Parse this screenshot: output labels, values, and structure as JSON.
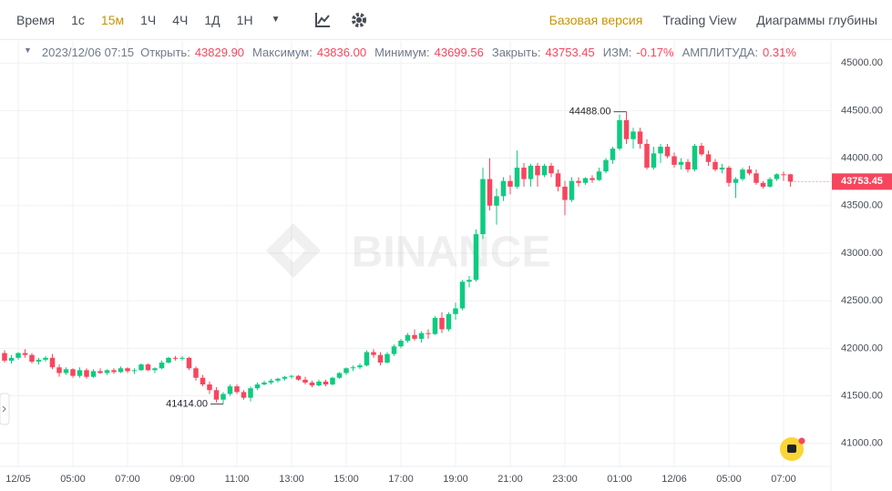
{
  "toolbar": {
    "intervals": [
      "Время",
      "1с",
      "15м",
      "1Ч",
      "4Ч",
      "1Д",
      "1Н"
    ],
    "active_interval": "15м",
    "views": [
      "Базовая версия",
      "Trading View",
      "Диаграммы глубины"
    ],
    "active_view": "Базовая версия"
  },
  "header": {
    "time": "2023/12/06 07:15",
    "fields": [
      {
        "label": "Открыть:",
        "value": "43829.90"
      },
      {
        "label": "Максимум:",
        "value": "43836.00"
      },
      {
        "label": "Минимум:",
        "value": "43699.56"
      },
      {
        "label": "Закрыть:",
        "value": "43753.45"
      },
      {
        "label": "ИЗМ:",
        "value": "-0.17%"
      },
      {
        "label": "АМПЛИТУДА:",
        "value": "0.31%"
      }
    ]
  },
  "chart_data": {
    "type": "candlestick",
    "watermark": "BINANCE",
    "up_color": "#0ecb81",
    "down_color": "#f6465d",
    "ylim": [
      40758,
      45232
    ],
    "yticks": [
      {
        "value": 41000,
        "label": "41000.00"
      },
      {
        "value": 41500,
        "label": "41500.00"
      },
      {
        "value": 42000,
        "label": "42000.00"
      },
      {
        "value": 42500,
        "label": "42500.00"
      },
      {
        "value": 43000,
        "label": "43000.00"
      },
      {
        "value": 43500,
        "label": "43500.00"
      },
      {
        "value": 44000,
        "label": "44000.00"
      },
      {
        "value": 44500,
        "label": "44500.00"
      },
      {
        "value": 45000,
        "label": "45000.00"
      }
    ],
    "xticks": [
      {
        "value": 2,
        "label": "12/05"
      },
      {
        "value": 10,
        "label": "05:00"
      },
      {
        "value": 18,
        "label": "07:00"
      },
      {
        "value": 26,
        "label": "09:00"
      },
      {
        "value": 34,
        "label": "11:00"
      },
      {
        "value": 42,
        "label": "13:00"
      },
      {
        "value": 50,
        "label": "15:00"
      },
      {
        "value": 58,
        "label": "17:00"
      },
      {
        "value": 66,
        "label": "19:00"
      },
      {
        "value": 74,
        "label": "21:00"
      },
      {
        "value": 82,
        "label": "23:00"
      },
      {
        "value": 90,
        "label": "01:00"
      },
      {
        "value": 98,
        "label": "12/06"
      },
      {
        "value": 106,
        "label": "05:00"
      },
      {
        "value": 114,
        "label": "07:00"
      }
    ],
    "annotations": [
      {
        "value": 44488,
        "label": "44488.00"
      },
      {
        "value": 41414,
        "label": "41414.00"
      }
    ],
    "candles": [
      [
        41950,
        41980,
        41850,
        41870
      ],
      [
        41870,
        41930,
        41840,
        41900
      ],
      [
        41900,
        41960,
        41880,
        41950
      ],
      [
        41950,
        41990,
        41900,
        41930
      ],
      [
        41930,
        41950,
        41840,
        41860
      ],
      [
        41860,
        41900,
        41830,
        41880
      ],
      [
        41880,
        41920,
        41860,
        41900
      ],
      [
        41900,
        41940,
        41780,
        41800
      ],
      [
        41800,
        41830,
        41700,
        41740
      ],
      [
        41740,
        41800,
        41720,
        41780
      ],
      [
        41780,
        41790,
        41690,
        41710
      ],
      [
        41710,
        41800,
        41690,
        41770
      ],
      [
        41770,
        41790,
        41680,
        41700
      ],
      [
        41700,
        41780,
        41690,
        41760
      ],
      [
        41760,
        41790,
        41730,
        41740
      ],
      [
        41740,
        41780,
        41720,
        41770
      ],
      [
        41770,
        41790,
        41730,
        41750
      ],
      [
        41750,
        41810,
        41740,
        41790
      ],
      [
        41790,
        41800,
        41740,
        41760
      ],
      [
        41760,
        41790,
        41730,
        41770
      ],
      [
        41770,
        41840,
        41760,
        41830
      ],
      [
        41830,
        41840,
        41760,
        41770
      ],
      [
        41770,
        41800,
        41740,
        41790
      ],
      [
        41790,
        41870,
        41780,
        41850
      ],
      [
        41850,
        41910,
        41840,
        41900
      ],
      [
        41900,
        41920,
        41870,
        41890
      ],
      [
        41890,
        41920,
        41870,
        41900
      ],
      [
        41900,
        41910,
        41770,
        41790
      ],
      [
        41790,
        41810,
        41660,
        41690
      ],
      [
        41690,
        41720,
        41600,
        41620
      ],
      [
        41620,
        41650,
        41520,
        41560
      ],
      [
        41560,
        41590,
        41430,
        41460
      ],
      [
        41460,
        41540,
        41414,
        41520
      ],
      [
        41520,
        41620,
        41500,
        41600
      ],
      [
        41600,
        41620,
        41520,
        41540
      ],
      [
        41540,
        41560,
        41460,
        41480
      ],
      [
        41480,
        41600,
        41440,
        41580
      ],
      [
        41580,
        41640,
        41560,
        41620
      ],
      [
        41620,
        41660,
        41610,
        41640
      ],
      [
        41640,
        41680,
        41620,
        41660
      ],
      [
        41660,
        41690,
        41640,
        41680
      ],
      [
        41680,
        41710,
        41660,
        41700
      ],
      [
        41700,
        41720,
        41680,
        41710
      ],
      [
        41710,
        41720,
        41660,
        41670
      ],
      [
        41670,
        41700,
        41620,
        41640
      ],
      [
        41640,
        41660,
        41590,
        41610
      ],
      [
        41610,
        41670,
        41600,
        41650
      ],
      [
        41650,
        41670,
        41600,
        41620
      ],
      [
        41620,
        41700,
        41610,
        41690
      ],
      [
        41690,
        41750,
        41680,
        41740
      ],
      [
        41740,
        41800,
        41720,
        41790
      ],
      [
        41790,
        41820,
        41760,
        41800
      ],
      [
        41800,
        41840,
        41780,
        41820
      ],
      [
        41820,
        41980,
        41810,
        41960
      ],
      [
        41960,
        41990,
        41900,
        41930
      ],
      [
        41930,
        41960,
        41820,
        41850
      ],
      [
        41850,
        41960,
        41840,
        41940
      ],
      [
        41940,
        42040,
        41920,
        42020
      ],
      [
        42020,
        42100,
        42000,
        42080
      ],
      [
        42080,
        42160,
        42060,
        42140
      ],
      [
        42140,
        42200,
        42080,
        42100
      ],
      [
        42100,
        42180,
        42060,
        42160
      ],
      [
        42160,
        42200,
        42100,
        42150
      ],
      [
        42150,
        42340,
        42140,
        42320
      ],
      [
        42320,
        42380,
        42160,
        42200
      ],
      [
        42200,
        42380,
        42180,
        42360
      ],
      [
        42360,
        42480,
        42300,
        42420
      ],
      [
        42420,
        42720,
        42400,
        42700
      ],
      [
        42700,
        42760,
        42640,
        42720
      ],
      [
        42720,
        43250,
        42700,
        43200
      ],
      [
        43200,
        43900,
        43150,
        43780
      ],
      [
        43780,
        44000,
        43450,
        43500
      ],
      [
        43500,
        43680,
        43300,
        43600
      ],
      [
        43600,
        43800,
        43550,
        43760
      ],
      [
        43760,
        43820,
        43620,
        43700
      ],
      [
        43700,
        44080,
        43680,
        43900
      ],
      [
        43900,
        43950,
        43700,
        43780
      ],
      [
        43780,
        43940,
        43700,
        43920
      ],
      [
        43920,
        43950,
        43700,
        43820
      ],
      [
        43820,
        43940,
        43800,
        43920
      ],
      [
        43920,
        43950,
        43800,
        43840
      ],
      [
        43840,
        43880,
        43650,
        43700
      ],
      [
        43700,
        43760,
        43400,
        43560
      ],
      [
        43560,
        43800,
        43540,
        43760
      ],
      [
        43760,
        43800,
        43700,
        43740
      ],
      [
        43740,
        43800,
        43720,
        43790
      ],
      [
        43790,
        43820,
        43740,
        43770
      ],
      [
        43770,
        43900,
        43760,
        43860
      ],
      [
        43860,
        44000,
        43840,
        43980
      ],
      [
        43980,
        44120,
        43940,
        44100
      ],
      [
        44100,
        44460,
        44080,
        44400
      ],
      [
        44400,
        44488,
        44150,
        44200
      ],
      [
        44200,
        44320,
        44100,
        44280
      ],
      [
        44280,
        44320,
        44100,
        44150
      ],
      [
        44150,
        44200,
        43880,
        43900
      ],
      [
        43900,
        44120,
        43880,
        44050
      ],
      [
        44050,
        44150,
        43950,
        44120
      ],
      [
        44120,
        44150,
        44000,
        44020
      ],
      [
        44020,
        44060,
        43900,
        43930
      ],
      [
        43930,
        44000,
        43880,
        43960
      ],
      [
        43960,
        43990,
        43850,
        43880
      ],
      [
        43880,
        44150,
        43860,
        44130
      ],
      [
        44130,
        44160,
        44020,
        44040
      ],
      [
        44040,
        44080,
        43920,
        43960
      ],
      [
        43960,
        43990,
        43860,
        43880
      ],
      [
        43880,
        43940,
        43840,
        43900
      ],
      [
        43900,
        43920,
        43700,
        43740
      ],
      [
        43740,
        43800,
        43580,
        43780
      ],
      [
        43780,
        43900,
        43760,
        43880
      ],
      [
        43880,
        43920,
        43820,
        43840
      ],
      [
        43840,
        43880,
        43720,
        43740
      ],
      [
        43740,
        43760,
        43680,
        43700
      ],
      [
        43700,
        43800,
        43690,
        43780
      ],
      [
        43780,
        43840,
        43760,
        43830
      ],
      [
        43830,
        43860,
        43760,
        43829.9
      ],
      [
        43829.9,
        43836,
        43699.56,
        43753.45
      ]
    ]
  }
}
